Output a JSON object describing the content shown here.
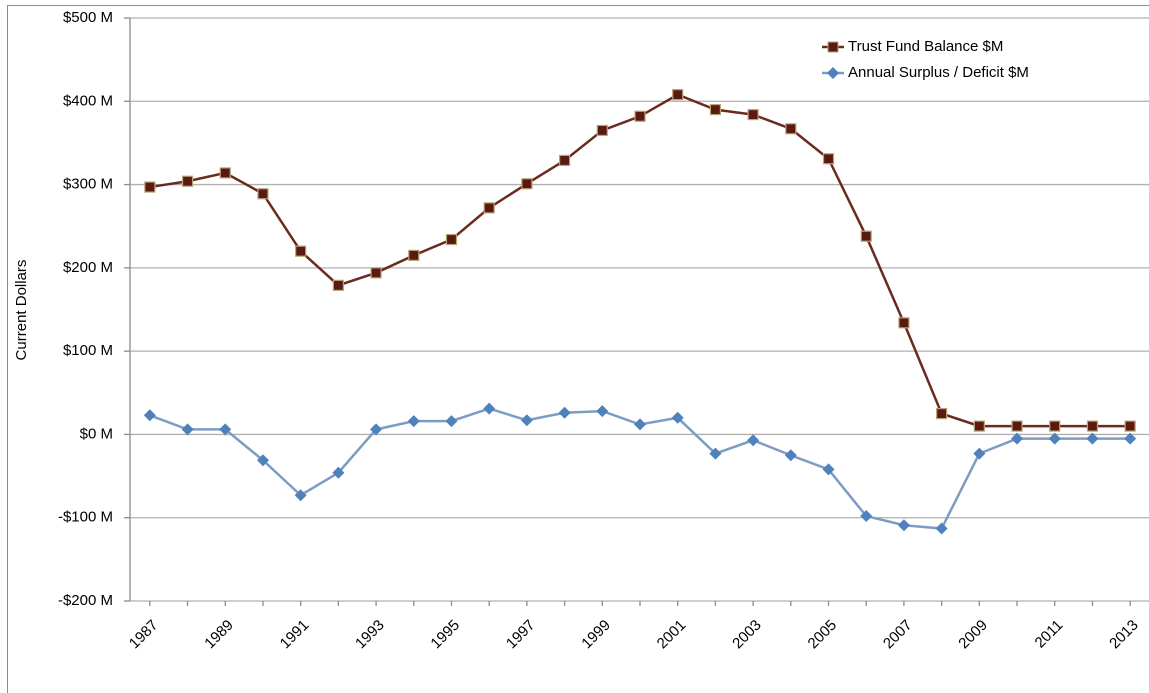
{
  "chart_data": {
    "type": "line",
    "y_label": "Current Dollars",
    "categories": [
      "1987",
      null,
      "1989",
      null,
      "1991",
      null,
      "1993",
      null,
      "1995",
      null,
      "1997",
      null,
      "1999",
      null,
      "2001",
      null,
      "2003",
      null,
      "2005",
      null,
      "2007",
      null,
      "2009",
      null,
      "2011",
      null,
      "2013"
    ],
    "series": [
      {
        "name": "Trust Fund Balance $M",
        "color": "#6b2a1f",
        "marker": "square",
        "marker_color": "#5a1a10",
        "values": [
          297,
          304,
          314,
          289,
          220,
          179,
          194,
          215,
          234,
          272,
          301,
          329,
          365,
          382,
          408,
          390,
          384,
          367,
          331,
          238,
          134,
          25,
          10,
          10,
          10,
          10,
          10
        ]
      },
      {
        "name": "Annual Surplus / Deficit $M",
        "color": "#7d9cc4",
        "marker": "diamond",
        "marker_color": "#4f81bd",
        "values": [
          23,
          6,
          6,
          -31,
          -73,
          -46,
          6,
          16,
          16,
          31,
          17,
          26,
          28,
          12,
          20,
          -23,
          -7,
          -25,
          -42,
          -98,
          -109,
          -113,
          -23,
          -5,
          -5,
          -5,
          -5
        ]
      }
    ],
    "ylim": [
      -200,
      500
    ],
    "yticks": [
      {
        "value": -200,
        "label": "-$200 M"
      },
      {
        "value": -100,
        "label": "-$100 M"
      },
      {
        "value": 0,
        "label": "$0 M"
      },
      {
        "value": 100,
        "label": "$100 M"
      },
      {
        "value": 200,
        "label": "$200 M"
      },
      {
        "value": 300,
        "label": "$300 M"
      },
      {
        "value": 400,
        "label": "$400 M"
      },
      {
        "value": 500,
        "label": "$500 M"
      }
    ],
    "grid": true,
    "legend": "upper right"
  }
}
